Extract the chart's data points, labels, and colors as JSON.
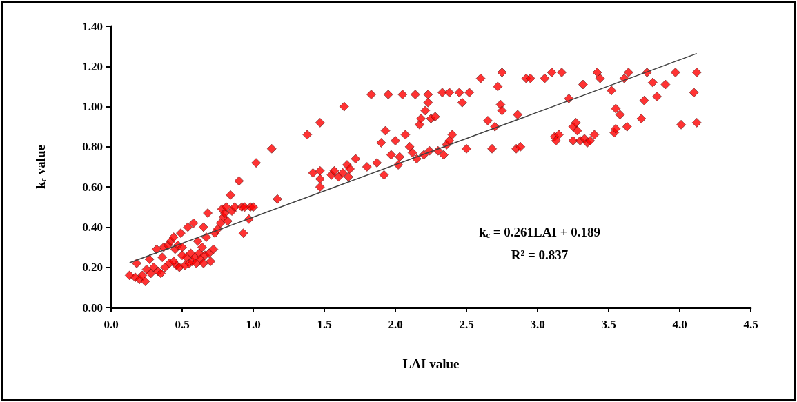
{
  "chart_data": {
    "type": "scatter",
    "xlabel": "LAI value",
    "ylabel": "k$_{c}$ value",
    "annotations": [
      "k$_{c}$ = 0.261LAI + 0.189",
      "R² = 0.837"
    ],
    "xlim": [
      0,
      4.5
    ],
    "ylim": [
      0,
      1.4
    ],
    "xticks": [
      {
        "value": 0,
        "label": "0.0"
      },
      0.5,
      {
        "value": 1,
        "label": "1.0"
      },
      1.5,
      {
        "value": 2,
        "label": "2.0"
      },
      2.5,
      {
        "value": 3,
        "label": "3.0"
      },
      3.5,
      {
        "value": 4,
        "label": "4.0"
      },
      4.5
    ],
    "yticks": [
      {
        "value": 0,
        "label": "0.00"
      },
      {
        "value": 0.2,
        "label": "0.20"
      },
      {
        "value": 0.4,
        "label": "0.40"
      },
      {
        "value": 0.6,
        "label": "0.60"
      },
      {
        "value": 0.8,
        "label": "0.80"
      },
      {
        "value": 1,
        "label": "1.00"
      },
      {
        "value": 1.2,
        "label": "1.20"
      },
      {
        "value": 1.4,
        "label": "1.40"
      }
    ],
    "grid": false,
    "marker": "diamond",
    "series": [
      {
        "color": "#ff0000",
        "x": [
          0.13,
          0.17,
          0.18,
          0.2,
          0.22,
          0.24,
          0.25,
          0.27,
          0.28,
          0.3,
          0.32,
          0.33,
          0.35,
          0.36,
          0.37,
          0.38,
          0.4,
          0.41,
          0.42,
          0.44,
          0.45,
          0.46,
          0.47,
          0.48,
          0.49,
          0.5,
          0.52,
          0.53,
          0.54,
          0.55,
          0.56,
          0.57,
          0.58,
          0.59,
          0.6,
          0.61,
          0.62,
          0.63,
          0.64,
          0.65,
          0.66,
          0.67,
          0.68,
          0.69,
          0.7,
          0.72,
          0.73,
          0.75,
          0.77,
          0.78,
          0.79,
          0.8,
          0.81,
          0.82,
          0.84,
          0.85,
          0.87,
          0.9,
          0.92,
          0.93,
          0.94,
          0.97,
          0.98,
          1.0,
          1.02,
          1.13,
          1.17,
          0.65,
          0.44,
          0.5,
          1.38,
          1.42,
          1.47,
          1.47,
          1.47,
          1.47,
          1.55,
          1.57,
          1.6,
          1.63,
          1.64,
          1.66,
          1.67,
          1.68,
          1.72,
          1.8,
          1.83,
          1.87,
          1.9,
          1.92,
          1.93,
          1.95,
          1.97,
          2.0,
          2.02,
          2.03,
          2.05,
          2.07,
          2.1,
          2.12,
          2.14,
          2.15,
          2.17,
          2.18,
          2.2,
          2.21,
          2.23,
          2.23,
          2.24,
          2.25,
          2.28,
          2.3,
          2.33,
          2.34,
          2.36,
          2.38,
          2.38,
          2.4,
          2.45,
          2.47,
          2.5,
          2.52,
          2.6,
          2.65,
          2.68,
          2.7,
          2.72,
          2.74,
          2.75,
          2.75,
          2.85,
          2.86,
          2.88,
          2.92,
          2.95,
          3.05,
          3.1,
          3.12,
          3.13,
          3.15,
          3.17,
          3.22,
          3.25,
          3.25,
          3.27,
          3.28,
          3.3,
          3.32,
          3.33,
          3.35,
          3.37,
          3.4,
          3.42,
          3.44,
          3.52,
          3.54,
          3.55,
          3.55,
          3.58,
          3.61,
          3.63,
          3.64,
          3.73,
          3.75,
          3.77,
          3.81,
          3.84,
          3.9,
          3.97,
          4.01,
          4.1,
          4.12,
          4.12
        ],
        "values": [
          0.16,
          0.15,
          0.22,
          0.14,
          0.16,
          0.13,
          0.19,
          0.24,
          0.17,
          0.2,
          0.29,
          0.18,
          0.17,
          0.25,
          0.3,
          0.2,
          0.31,
          0.22,
          0.33,
          0.35,
          0.29,
          0.21,
          0.31,
          0.2,
          0.37,
          0.3,
          0.21,
          0.25,
          0.4,
          0.22,
          0.27,
          0.23,
          0.42,
          0.25,
          0.22,
          0.33,
          0.27,
          0.24,
          0.3,
          0.22,
          0.26,
          0.35,
          0.47,
          0.27,
          0.23,
          0.29,
          0.37,
          0.39,
          0.42,
          0.49,
          0.45,
          0.47,
          0.5,
          0.43,
          0.56,
          0.48,
          0.5,
          0.63,
          0.5,
          0.37,
          0.5,
          0.44,
          0.5,
          0.5,
          0.72,
          0.79,
          0.54,
          0.4,
          0.23,
          0.26,
          0.86,
          0.67,
          0.92,
          0.68,
          0.64,
          0.6,
          0.66,
          0.68,
          0.65,
          0.67,
          1.0,
          0.71,
          0.65,
          0.69,
          0.74,
          0.7,
          1.06,
          0.72,
          0.82,
          0.66,
          0.88,
          1.06,
          0.76,
          0.83,
          0.71,
          0.75,
          1.06,
          0.86,
          0.8,
          0.77,
          1.06,
          0.74,
          0.91,
          0.94,
          0.76,
          0.98,
          1.06,
          1.02,
          0.78,
          0.94,
          0.95,
          0.78,
          1.07,
          0.76,
          0.81,
          0.83,
          1.07,
          0.86,
          1.07,
          1.02,
          0.79,
          1.07,
          1.14,
          0.93,
          0.79,
          0.9,
          1.1,
          1.01,
          0.98,
          1.17,
          0.79,
          0.96,
          0.8,
          1.14,
          1.14,
          1.14,
          1.17,
          0.85,
          0.83,
          0.86,
          1.17,
          1.04,
          0.83,
          0.9,
          0.92,
          0.88,
          0.83,
          1.11,
          0.84,
          0.82,
          0.83,
          0.86,
          1.17,
          1.14,
          1.08,
          0.87,
          0.89,
          0.99,
          0.96,
          1.14,
          0.9,
          1.17,
          0.94,
          1.03,
          1.17,
          1.12,
          1.05,
          1.11,
          1.17,
          0.91,
          1.07,
          1.17,
          0.92
        ]
      },
      {
        "type": "line",
        "color": "#404040",
        "marker": "none",
        "x": [
          0.13,
          4.12
        ],
        "values": [
          0.223,
          1.264
        ]
      }
    ]
  }
}
